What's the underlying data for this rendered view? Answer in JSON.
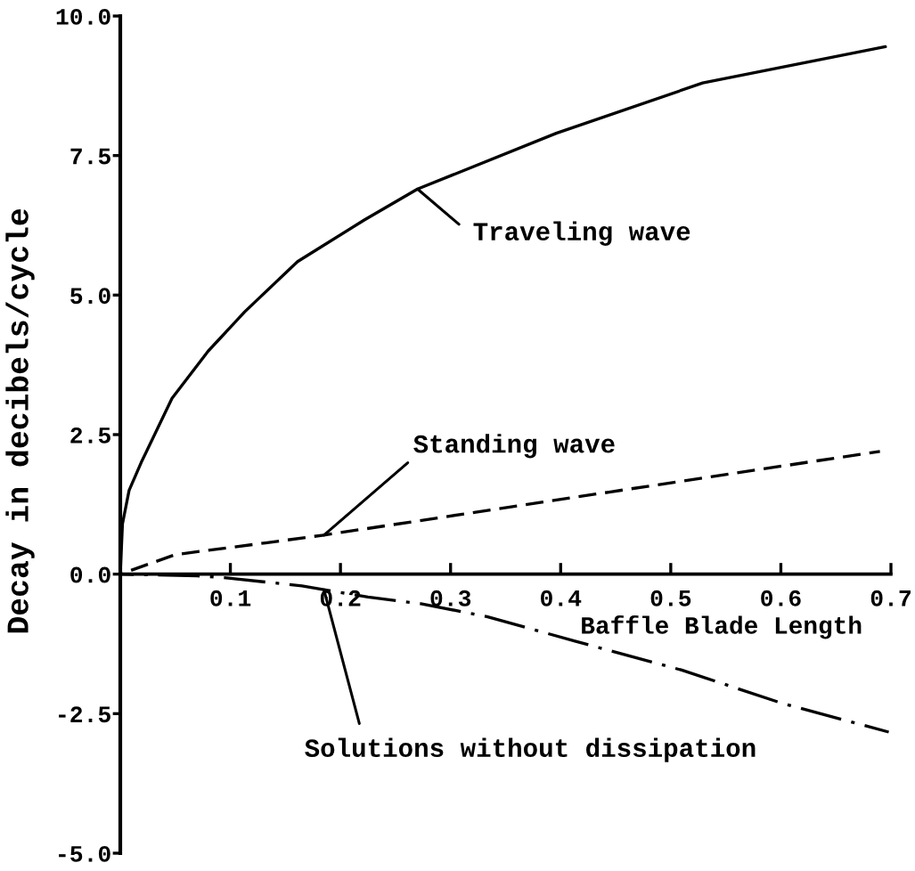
{
  "chart_data": {
    "type": "line",
    "xlabel": "Baffle Blade Length",
    "ylabel": "Decay in decibels/cycle",
    "xlim": [
      0,
      0.7
    ],
    "ylim": [
      -5,
      10
    ],
    "xticks": [
      0.1,
      0.2,
      0.3,
      0.4,
      0.5,
      0.6,
      0.7
    ],
    "yticks": [
      {
        "value": -5,
        "label": "-5.0"
      },
      {
        "value": -2.5,
        "label": "-2.5"
      },
      {
        "value": 0,
        "label": "0.0"
      },
      {
        "value": 2.5,
        "label": "2.5"
      },
      {
        "value": 5,
        "label": "5.0"
      },
      {
        "value": 7.5,
        "label": "7.5"
      },
      {
        "value": 10,
        "label": "10.0"
      }
    ],
    "series": [
      {
        "name": "Traveling wave",
        "color": "#000000",
        "line_style": "solid",
        "x": [
          0,
          0.002,
          0.008,
          0.019,
          0.047,
          0.08,
          0.113,
          0.161,
          0.222,
          0.27,
          0.396,
          0.529,
          0.695
        ],
        "values": [
          0,
          0.9,
          1.5,
          2.0,
          3.15,
          4.0,
          4.7,
          5.6,
          6.35,
          6.9,
          7.9,
          8.8,
          9.45
        ]
      },
      {
        "name": "Standing wave",
        "color": "#000000",
        "line_style": "dashed",
        "x": [
          0,
          0.05,
          0.132,
          0.185,
          0.444,
          0.69
        ],
        "values": [
          0,
          0.35,
          0.56,
          0.7,
          1.47,
          2.2
        ]
      },
      {
        "name": "Solutions without dissipation",
        "color": "#000000",
        "line_style": "dashdot",
        "x": [
          0,
          0.07,
          0.093,
          0.165,
          0.185,
          0.225,
          0.273,
          0.333,
          0.413,
          0.51,
          0.602,
          0.698
        ],
        "values": [
          0,
          -0.03,
          -0.06,
          -0.21,
          -0.28,
          -0.41,
          -0.53,
          -0.76,
          -1.2,
          -1.72,
          -2.32,
          -2.83
        ]
      }
    ]
  }
}
